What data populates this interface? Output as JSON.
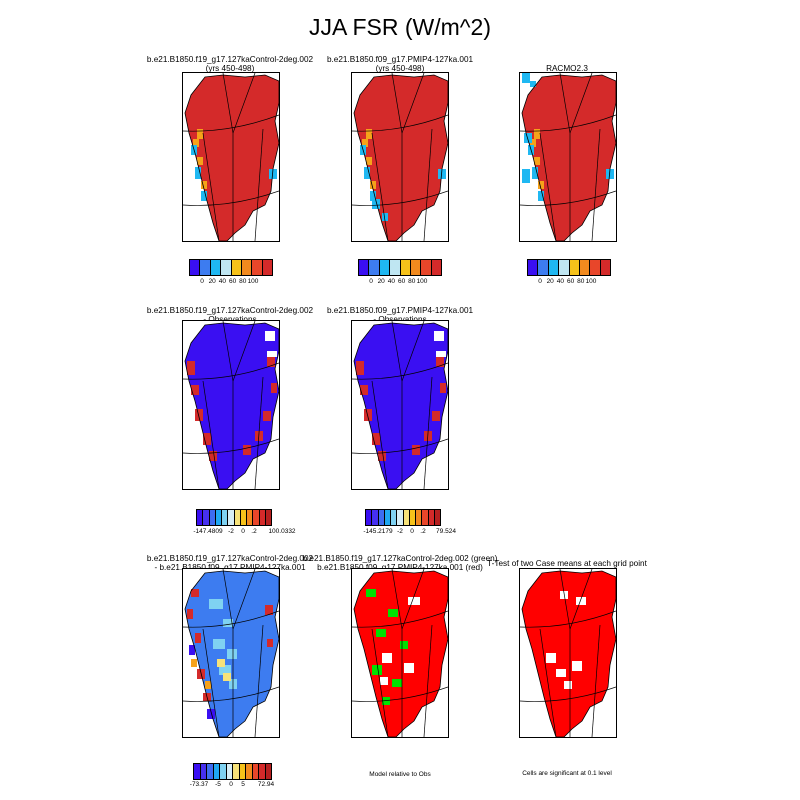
{
  "title": "JJA FSR (W/m^2)",
  "panels": {
    "p1": {
      "line1": "b.e21.B1850.f19_g17.127kaControl-2deg.002",
      "line2": "(yrs 450-498)"
    },
    "p2": {
      "line1": "b.e21.B1850.f09_g17.PMIP4-127ka.001",
      "line2": "(yrs 450-498)"
    },
    "p3": {
      "line1": "RACMO2.3"
    },
    "p4": {
      "line1": "b.e21.B1850.f19_g17.127kaControl-2deg.002",
      "line2": "- Observations"
    },
    "p5": {
      "line1": "b.e21.B1850.f09_g17.PMIP4-127ka.001",
      "line2": "- Observations"
    },
    "p6": {
      "line1": "b.e21.B1850.f19_g17.127kaControl-2deg.002",
      "line2": "- b.e21.B1850.f09_g17.PMIP4-127ka.001"
    },
    "p7": {
      "line1": "b.e21.B1850.f19_g17.127kaControl-2deg.002 (green)",
      "line2": "b.e21.B1850.f09_g17.PMIP4-127ka.001 (red)"
    },
    "p8": {
      "line1": "T-Test of two Case means at each grid point"
    }
  },
  "colorbars": {
    "row1": {
      "colors": [
        "#3a0ff2",
        "#3d7cf0",
        "#1fb8f2",
        "#bfe6f2",
        "#f6c21a",
        "#f28a1e",
        "#e8462a",
        "#d42a2a"
      ],
      "ticks": [
        "0",
        "20",
        "40",
        "60",
        "80",
        "100"
      ]
    },
    "row2_left": {
      "colors": [
        "#3a0ff2",
        "#4630f0",
        "#3d6cf0",
        "#1fa8f2",
        "#7fd2f2",
        "#d7eef6",
        "#f6e27a",
        "#f6c21a",
        "#f28a1e",
        "#e8462a",
        "#d42a2a",
        "#b51f1f"
      ],
      "ticks": [
        "-147.4809",
        "-2",
        "0",
        ".2",
        "100.0332"
      ]
    },
    "row2_mid": {
      "colors": [
        "#3a0ff2",
        "#4630f0",
        "#3d6cf0",
        "#1fa8f2",
        "#7fd2f2",
        "#d7eef6",
        "#f6e27a",
        "#f6c21a",
        "#f28a1e",
        "#e8462a",
        "#d42a2a",
        "#b51f1f"
      ],
      "ticks": [
        "-145.2179",
        "-2",
        "0",
        ".2",
        "79.524"
      ]
    },
    "row3": {
      "colors": [
        "#3a0ff2",
        "#4630f0",
        "#3d6cf0",
        "#1fa8f2",
        "#7fd2f2",
        "#d7eef6",
        "#f6e27a",
        "#f6c21a",
        "#f28a1e",
        "#e8462a",
        "#d42a2a",
        "#b51f1f"
      ],
      "ticks": [
        "-73.37",
        "-5",
        "0",
        "5",
        "72.94"
      ]
    }
  },
  "notes": {
    "model_relative": "Model relative to Obs",
    "significance": "Cells are significant at 0.1 level"
  },
  "map_colors": {
    "land_high": "#d42a2a",
    "coast_orange": "#f6a21a",
    "coast_blue": "#1fb8f2",
    "bias_blue": "#3a0ff2",
    "green": "#00e000",
    "red": "#ff0000"
  }
}
